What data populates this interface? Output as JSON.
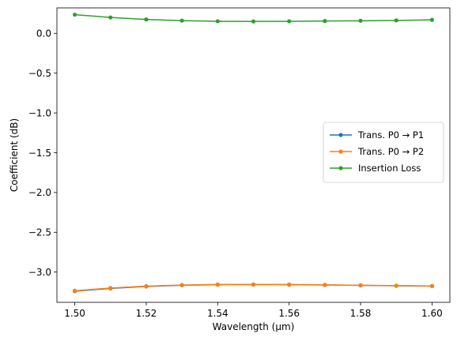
{
  "chart_data": {
    "type": "line",
    "title": "",
    "xlabel": "Wavelength (µm)",
    "ylabel": "Coefficient (dB)",
    "xlim": [
      1.495,
      1.605
    ],
    "ylim": [
      -3.38,
      0.32
    ],
    "xticks": [
      1.5,
      1.52,
      1.54,
      1.56,
      1.58,
      1.6
    ],
    "xtick_labels": [
      "1.50",
      "1.52",
      "1.54",
      "1.56",
      "1.58",
      "1.60"
    ],
    "yticks": [
      0.0,
      -0.5,
      -1.0,
      -1.5,
      -2.0,
      -2.5,
      -3.0
    ],
    "ytick_labels": [
      "0.0",
      "−0.5",
      "−1.0",
      "−1.5",
      "−2.0",
      "−2.5",
      "−3.0"
    ],
    "grid": false,
    "legend_position": "center-right",
    "x": [
      1.5,
      1.51,
      1.52,
      1.53,
      1.54,
      1.55,
      1.56,
      1.57,
      1.58,
      1.59,
      1.6
    ],
    "series": [
      {
        "name": "Trans. P0 → P1",
        "color": "#1f77b4",
        "values": [
          -3.24,
          -3.205,
          -3.18,
          -3.165,
          -3.158,
          -3.157,
          -3.158,
          -3.162,
          -3.167,
          -3.172,
          -3.176
        ]
      },
      {
        "name": "Trans. P0 → P2",
        "color": "#ff7f0e",
        "values": [
          -3.235,
          -3.2,
          -3.177,
          -3.163,
          -3.156,
          -3.155,
          -3.156,
          -3.16,
          -3.165,
          -3.17,
          -3.174
        ]
      },
      {
        "name": "Insertion Loss",
        "color": "#2ca02c",
        "values": [
          0.235,
          0.2,
          0.175,
          0.16,
          0.152,
          0.15,
          0.152,
          0.155,
          0.158,
          0.163,
          0.17
        ]
      }
    ]
  }
}
